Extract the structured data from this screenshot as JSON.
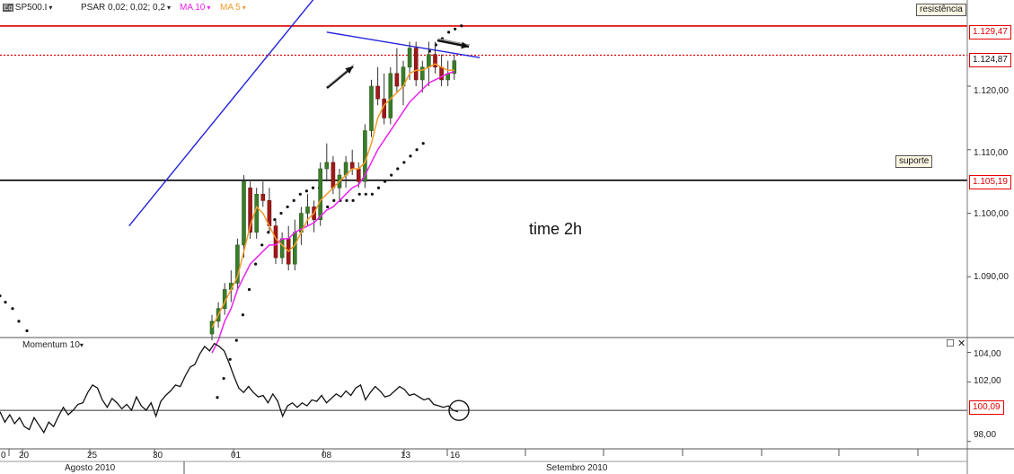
{
  "header": {
    "symbol": "SP500.I",
    "symbol_icon": "Eq",
    "indicators": [
      {
        "label": "PSAR 0,02; 0,02; 0,2",
        "color": "#222222"
      },
      {
        "label": "MA 10",
        "color": "#ee22ee"
      },
      {
        "label": "MA 5",
        "color": "#f39a2a"
      }
    ]
  },
  "annotations": {
    "resistance": "resistência",
    "support": "suporte",
    "timeframe": "time 2h"
  },
  "price_panel": {
    "ticks": [
      "1.120,00",
      "1.110,00",
      "1.100,00",
      "1.090,00"
    ],
    "levels": [
      {
        "label": "1.129,47",
        "value": 1129.47,
        "color": "#e00000",
        "style": "solid"
      },
      {
        "label": "1.124,87",
        "value": 1124.87,
        "color": "#e00000",
        "style": "dotted"
      },
      {
        "label": "1.105,19",
        "value": 1105.19,
        "color": "#000000",
        "style": "solid"
      }
    ]
  },
  "momentum_panel": {
    "title": "Momentum 10",
    "ticks": [
      "104,00",
      "102,00",
      "98,00"
    ],
    "current_label": "100,09"
  },
  "x_axis": {
    "day_ticks": [
      "0",
      "20",
      "25",
      "30",
      "01",
      "08",
      "13",
      "16"
    ],
    "months": [
      "Agosto 2010",
      "Setembro 2010"
    ]
  },
  "chart_data": [
    {
      "type": "candlestick",
      "y_axis": {
        "range": [
          1081,
          1133
        ],
        "ticks": [
          1090,
          1100,
          1110,
          1120
        ]
      },
      "candles": [
        [
          1081,
          1084,
          1080,
          1083
        ],
        [
          1083,
          1086,
          1082,
          1085
        ],
        [
          1085,
          1089,
          1084,
          1088
        ],
        [
          1088,
          1091,
          1086,
          1089
        ],
        [
          1089,
          1096,
          1088,
          1095
        ],
        [
          1095,
          1106,
          1093,
          1105
        ],
        [
          1104,
          1105,
          1096,
          1097
        ],
        [
          1097,
          1104,
          1096,
          1103
        ],
        [
          1103,
          1105,
          1101,
          1102
        ],
        [
          1102,
          1104,
          1097,
          1098
        ],
        [
          1098,
          1099,
          1092,
          1093
        ],
        [
          1093,
          1097,
          1092,
          1096
        ],
        [
          1096,
          1098,
          1091,
          1092
        ],
        [
          1092,
          1099,
          1091,
          1097
        ],
        [
          1097,
          1101,
          1095,
          1100
        ],
        [
          1100,
          1103,
          1098,
          1101
        ],
        [
          1101,
          1102,
          1097,
          1099
        ],
        [
          1099,
          1108,
          1098,
          1107
        ],
        [
          1107,
          1111,
          1105,
          1108
        ],
        [
          1108,
          1109,
          1103,
          1104
        ],
        [
          1104,
          1107,
          1102,
          1106
        ],
        [
          1106,
          1109,
          1104,
          1108
        ],
        [
          1108,
          1110,
          1106,
          1107
        ],
        [
          1107,
          1108,
          1104,
          1105
        ],
        [
          1105,
          1114,
          1104,
          1113
        ],
        [
          1113,
          1121,
          1112,
          1120
        ],
        [
          1120,
          1123,
          1117,
          1118
        ],
        [
          1118,
          1122,
          1114,
          1115
        ],
        [
          1115,
          1123,
          1114,
          1122
        ],
        [
          1122,
          1126,
          1119,
          1120
        ],
        [
          1120,
          1124,
          1117,
          1123
        ],
        [
          1123,
          1127,
          1121,
          1126
        ],
        [
          1126,
          1127,
          1120,
          1121
        ],
        [
          1121,
          1124,
          1119,
          1123
        ],
        [
          1123,
          1127,
          1120,
          1125
        ],
        [
          1125,
          1127,
          1122,
          1123
        ],
        [
          1123,
          1125,
          1120,
          1121
        ],
        [
          1121,
          1124,
          1120,
          1122
        ],
        [
          1122,
          1125,
          1121,
          1124
        ]
      ],
      "ma10": [
        1078,
        1080,
        1083,
        1085,
        1088,
        1090,
        1092,
        1093,
        1094,
        1095,
        1095,
        1096,
        1096,
        1097,
        1097.5,
        1098,
        1098.5,
        1099.5,
        1100.5,
        1101,
        1102,
        1103,
        1104,
        1104.5,
        1106,
        1108,
        1110,
        1111.5,
        1113,
        1114.5,
        1116,
        1117.5,
        1118.5,
        1119.5,
        1120.5,
        1121,
        1121.5,
        1122,
        1122.3
      ],
      "ma5": [
        1082,
        1084,
        1086,
        1088,
        1090,
        1094,
        1098,
        1101,
        1100,
        1098,
        1096,
        1095,
        1094,
        1095,
        1097,
        1099,
        1100,
        1102,
        1103,
        1104,
        1105,
        1106,
        1107,
        1107,
        1108,
        1111,
        1115,
        1117,
        1118,
        1119,
        1120,
        1122,
        1122.5,
        1122.5,
        1123,
        1123.5,
        1123,
        1122.5,
        1122.5
      ],
      "psar": [
        1080,
        1083,
        1086,
        1089,
        1093,
        1097,
        1101,
        1104,
        1106,
        1108,
        1109,
        1110,
        1111,
        1112,
        1112.5,
        1113,
        1113,
        1113,
        1114,
        1114,
        1114,
        1114,
        1115,
        1115,
        1115,
        1116,
        1117,
        1118,
        1119,
        1120,
        1121,
        1122,
        1123,
        1124,
        1125,
        1126,
        1127,
        1127.5,
        1128
      ],
      "trendlines": [
        {
          "from": [
            -13,
            1098
          ],
          "to": [
            17,
            1135
          ],
          "color": "#2222dd"
        },
        {
          "from": [
            18,
            1128.5
          ],
          "to": [
            42,
            1124.5
          ],
          "color": "#2222dd"
        }
      ]
    },
    {
      "type": "line",
      "name": "Momentum 10",
      "y_axis": {
        "range": [
          97.5,
          105
        ],
        "ticks": [
          98,
          102,
          104
        ]
      },
      "values": [
        100,
        99.3,
        99.8,
        99.2,
        99.6,
        99.0,
        98.8,
        99.6,
        99.1,
        98.6,
        99.3,
        99.0,
        99.7,
        100.3,
        99.8,
        100.1,
        100.5,
        100.6,
        101.3,
        101.8,
        101.6,
        100.8,
        100.3,
        100.9,
        100.6,
        100.2,
        100.5,
        100.1,
        101.0,
        100.4,
        100.1,
        100.6,
        99.7,
        100.7,
        101.1,
        101.4,
        101.8,
        101.7,
        102.4,
        103.0,
        103.2,
        103.9,
        104.4,
        104.1,
        104.6,
        104.4,
        104.1,
        103.3,
        102.4,
        101.6,
        101.3,
        101.7,
        101.3,
        101.0,
        101.1,
        100.6,
        101.2,
        100.7,
        99.7,
        100.4,
        100.6,
        100.3,
        100.6,
        100.4,
        100.8,
        100.7,
        101.1,
        100.6,
        100.9,
        101.2,
        101.0,
        101.4,
        101.1,
        101.6,
        101.8,
        100.8,
        101.3,
        101.7,
        101.4,
        101.0,
        101.1,
        101.4,
        101.7,
        101.5,
        101.1,
        101.2,
        101.0,
        100.8,
        100.9,
        100.5,
        100.4,
        100.3,
        100.4,
        100.1,
        100.0
      ],
      "reference_line": 100.09
    }
  ]
}
